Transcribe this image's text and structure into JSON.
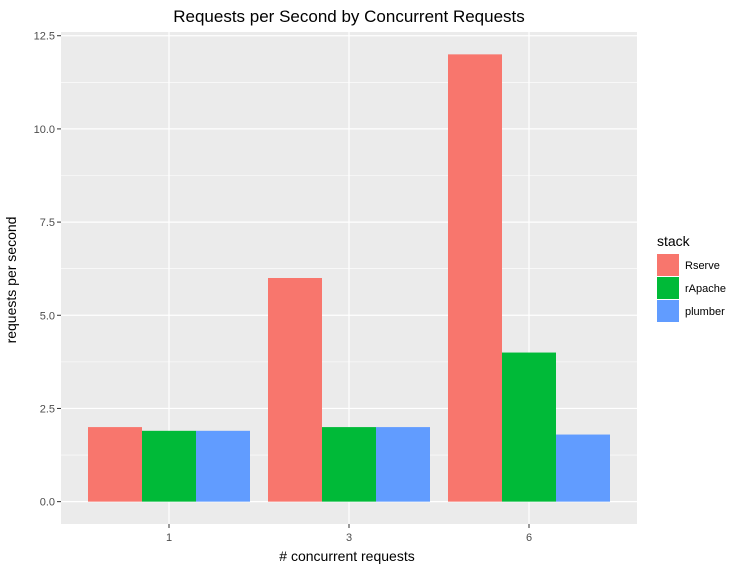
{
  "chart_data": {
    "type": "bar",
    "title": "Requests per Second by Concurrent Requests",
    "xlabel": "# concurrent requests",
    "ylabel": "requests per second",
    "categories": [
      "1",
      "3",
      "6"
    ],
    "series": [
      {
        "name": "Rserve",
        "color": "#F8766D",
        "values": [
          2.0,
          6.0,
          12.0
        ]
      },
      {
        "name": "rApache",
        "color": "#00BA38",
        "values": [
          1.9,
          2.0,
          4.0
        ]
      },
      {
        "name": "plumber",
        "color": "#619CFF",
        "values": [
          1.9,
          2.0,
          1.8
        ]
      }
    ],
    "ylim": [
      -0.6,
      12.6
    ],
    "yticks": [
      0.0,
      2.5,
      5.0,
      7.5,
      10.0,
      12.5
    ],
    "ytick_labels": [
      "0.0",
      "2.5",
      "5.0",
      "7.5",
      "10.0",
      "12.5"
    ],
    "legend_title": "stack",
    "legend_position": "right",
    "grid": true,
    "panel_background": "#EBEBEB",
    "grid_color": "#FFFFFF"
  }
}
